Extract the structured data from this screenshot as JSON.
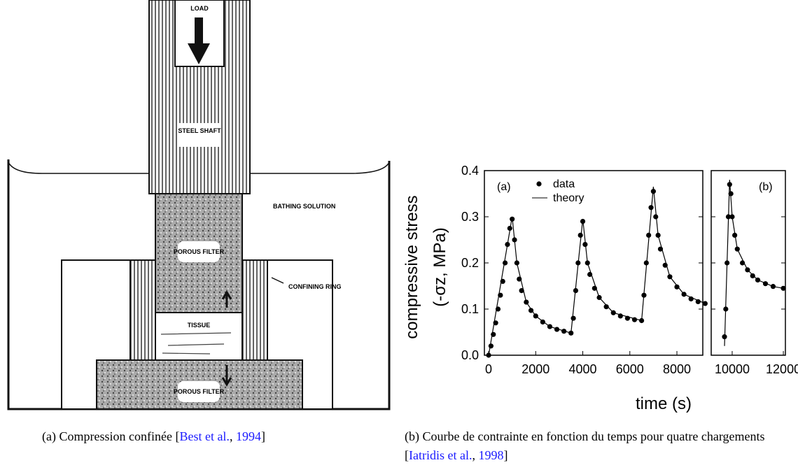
{
  "figure_a": {
    "labels": {
      "load": "LOAD",
      "shaft": "STEEL SHAFT",
      "bath": "BATHING SOLUTION",
      "filter_top": "POROUS FILTER",
      "ring": "CONFINING RING",
      "tissue": "TISSUE",
      "filter_bottom": "POROUS FILTER"
    },
    "caption": {
      "label": "(a)",
      "text": "Compression confinée [",
      "link1": "Best et al.",
      "sep": ", ",
      "link2": "1994",
      "end": "]"
    }
  },
  "figure_b": {
    "caption": {
      "label": "(b)",
      "text": "Courbe de contrainte en fonction du temps pour quatre chargements [",
      "link1": "Iatridis et al.",
      "sep": ", ",
      "link2": "1998",
      "end": "]"
    }
  },
  "chart_data": [
    {
      "type": "scatter-line",
      "ylabel_lines": [
        "compressive stress",
        "(-σz, MPa)"
      ],
      "xlabel": "time (s)",
      "annotation": "(a)",
      "legend": "top-left",
      "xlim": [
        -180,
        9100
      ],
      "xticks": [
        0,
        2000,
        4000,
        6000,
        8000
      ],
      "ylim": [
        0,
        0.4
      ],
      "yticks": [
        {
          "value": 0,
          "label": "0.0"
        },
        0.1,
        0.2,
        0.3,
        0.4
      ],
      "series": [
        {
          "name": "data",
          "style": "points",
          "color": "#000000",
          "x": [
            0,
            100,
            200,
            300,
            400,
            500,
            600,
            700,
            800,
            900,
            1000,
            1100,
            1200,
            1300,
            1400,
            1600,
            1800,
            2000,
            2300,
            2600,
            2900,
            3200,
            3500,
            3600,
            3700,
            3800,
            3900,
            4000,
            4100,
            4200,
            4300,
            4500,
            4700,
            5000,
            5300,
            5600,
            5900,
            6200,
            6500,
            6600,
            6700,
            6800,
            6900,
            7000,
            7100,
            7200,
            7300,
            7500,
            7700,
            8000,
            8300,
            8600,
            8900,
            9200
          ],
          "values": [
            0.0,
            0.02,
            0.045,
            0.07,
            0.1,
            0.13,
            0.16,
            0.2,
            0.24,
            0.275,
            0.295,
            0.25,
            0.2,
            0.165,
            0.14,
            0.115,
            0.097,
            0.085,
            0.072,
            0.062,
            0.056,
            0.052,
            0.048,
            0.08,
            0.14,
            0.2,
            0.26,
            0.29,
            0.24,
            0.2,
            0.175,
            0.145,
            0.125,
            0.105,
            0.092,
            0.085,
            0.08,
            0.077,
            0.075,
            0.13,
            0.2,
            0.26,
            0.32,
            0.355,
            0.3,
            0.26,
            0.23,
            0.195,
            0.17,
            0.148,
            0.132,
            0.122,
            0.116,
            0.112
          ]
        },
        {
          "name": "theory",
          "style": "line",
          "color": "#000000",
          "x": [
            0,
            1000,
            1200,
            1600,
            2000,
            2600,
            3500,
            4000,
            4200,
            4700,
            5300,
            6500,
            7000,
            7200,
            7700,
            8300,
            9200
          ],
          "values": [
            0.0,
            0.3,
            0.2,
            0.115,
            0.085,
            0.062,
            0.048,
            0.295,
            0.2,
            0.125,
            0.092,
            0.075,
            0.365,
            0.26,
            0.17,
            0.132,
            0.112
          ]
        }
      ]
    },
    {
      "type": "scatter-line",
      "annotation": "(b)",
      "xlim": [
        9180,
        12080
      ],
      "xticks": [
        10000,
        12000
      ],
      "ylim": [
        0,
        0.4
      ],
      "series": [
        {
          "style": "points",
          "color": "#000000",
          "x": [
            9700,
            9750,
            9800,
            9850,
            9900,
            9950,
            10000,
            10100,
            10200,
            10400,
            10600,
            10800,
            11000,
            11300,
            11600,
            12000
          ],
          "values": [
            0.04,
            0.1,
            0.2,
            0.3,
            0.37,
            0.35,
            0.3,
            0.26,
            0.23,
            0.2,
            0.185,
            0.172,
            0.163,
            0.155,
            0.149,
            0.145
          ]
        },
        {
          "style": "line",
          "color": "#000000",
          "x": [
            9700,
            9900,
            10000,
            10200,
            10600,
            11000,
            11600,
            12000
          ],
          "values": [
            0.02,
            0.38,
            0.3,
            0.23,
            0.185,
            0.163,
            0.149,
            0.145
          ]
        }
      ]
    }
  ]
}
